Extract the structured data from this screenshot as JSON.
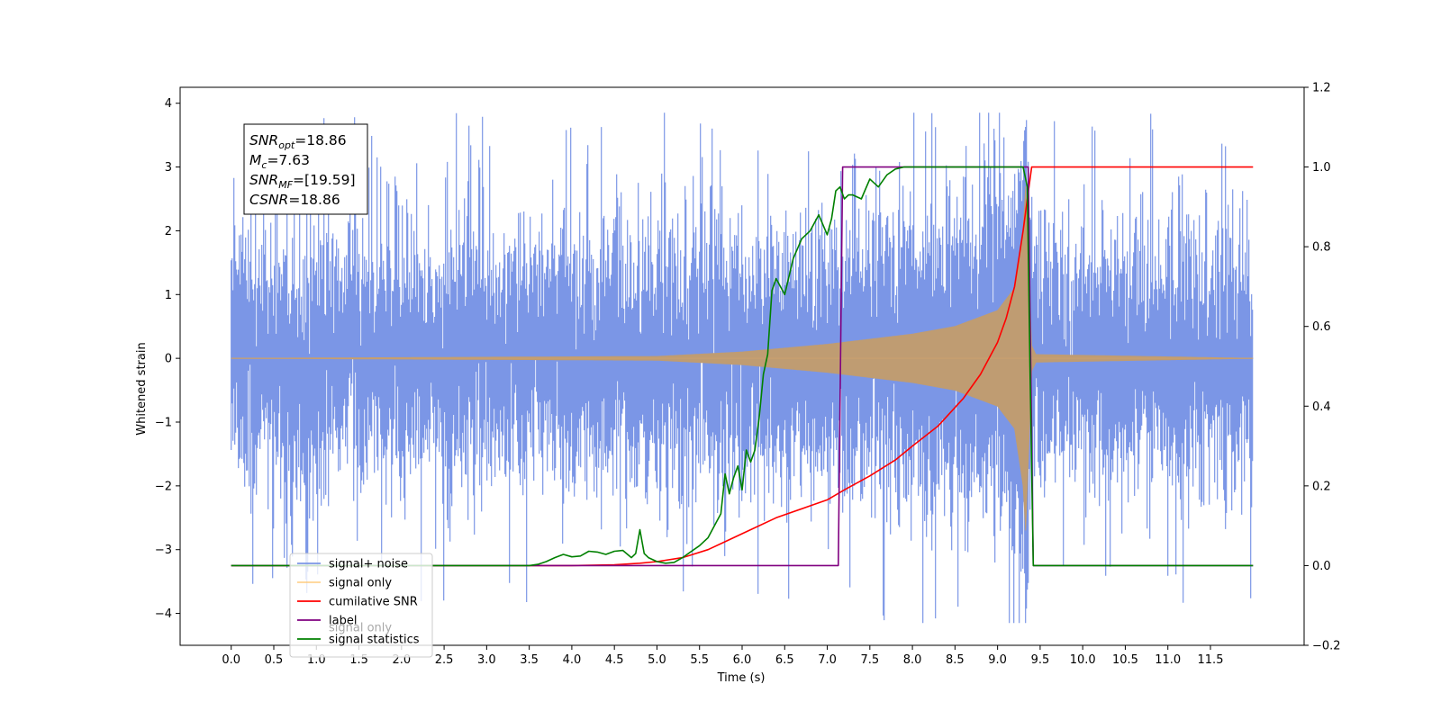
{
  "chart_data": {
    "type": "line",
    "title": "",
    "xlabel": "Time (s)",
    "ylabel": "Whitened strain",
    "ylabel_right": "",
    "xlim": [
      -0.6,
      12.6
    ],
    "ylim": [
      -4.5,
      4.25
    ],
    "ylim_right": [
      -0.2,
      1.2
    ],
    "x_ticks": [
      "0.0",
      "0.5",
      "1.0",
      "1.5",
      "2.0",
      "2.5",
      "3.0",
      "3.5",
      "4.0",
      "4.5",
      "5.0",
      "5.5",
      "6.0",
      "6.5",
      "7.0",
      "7.5",
      "8.0",
      "8.5",
      "9.0",
      "9.5",
      "10.0",
      "10.5",
      "11.0",
      "11.5"
    ],
    "y_ticks": [
      "4",
      "3",
      "2",
      "1",
      "0",
      "−1",
      "−2",
      "−3",
      "−4"
    ],
    "y_ticks_right": [
      "1.2",
      "1.0",
      "0.8",
      "0.6",
      "0.4",
      "0.2",
      "0.0",
      "−0.2"
    ],
    "grid": false,
    "legend_placement": "lower-left",
    "annotation": {
      "lines": [
        {
          "sym": "SNR",
          "sub": "opt",
          "val": "=18.86"
        },
        {
          "sym": "M",
          "sub": "c",
          "val": "=7.63"
        },
        {
          "sym": "SNR",
          "sub": "MF",
          "val": "=[19.59]"
        },
        {
          "sym": "CSNR",
          "sub": "",
          "val": "=18.86"
        }
      ]
    },
    "series": [
      {
        "name": "signal+ noise",
        "axis": "left",
        "color": "#7b96e6",
        "kind": "noise",
        "x_range": [
          0.0,
          12.0
        ],
        "amplitude_typical": 1.0,
        "amplitude_peak": 3.85
      },
      {
        "name": "signal only",
        "axis": "left",
        "color": "#ffc266",
        "kind": "chirp",
        "x_range": [
          0.0,
          12.0
        ],
        "merger_time": 9.33,
        "envelope": [
          [
            0.0,
            0.0
          ],
          [
            5.0,
            0.03
          ],
          [
            6.0,
            0.1
          ],
          [
            7.0,
            0.22
          ],
          [
            8.0,
            0.38
          ],
          [
            8.5,
            0.5
          ],
          [
            9.0,
            0.75
          ],
          [
            9.2,
            1.1
          ],
          [
            9.3,
            2.0
          ],
          [
            9.33,
            2.7
          ],
          [
            9.4,
            0.2
          ],
          [
            9.45,
            0.06
          ],
          [
            12.0,
            0.0
          ]
        ]
      },
      {
        "name": "cumilative SNR",
        "axis": "right",
        "color": "#ff0000",
        "x": [
          0.0,
          4.0,
          4.5,
          4.8,
          5.0,
          5.3,
          5.6,
          5.8,
          6.0,
          6.4,
          6.8,
          7.0,
          7.2,
          7.5,
          7.8,
          8.0,
          8.3,
          8.6,
          8.8,
          9.0,
          9.1,
          9.2,
          9.3,
          9.35,
          9.4,
          9.45,
          12.0
        ],
        "values": [
          0.0,
          0.0,
          0.002,
          0.006,
          0.01,
          0.02,
          0.04,
          0.06,
          0.08,
          0.12,
          0.15,
          0.165,
          0.19,
          0.225,
          0.265,
          0.3,
          0.35,
          0.42,
          0.48,
          0.56,
          0.62,
          0.7,
          0.84,
          0.92,
          1.0,
          1.0,
          1.0
        ]
      },
      {
        "name": "label",
        "axis": "right",
        "color": "#800080",
        "x": [
          0.0,
          7.13,
          7.18,
          9.36,
          9.42,
          12.0
        ],
        "values": [
          0.0,
          0.0,
          1.0,
          1.0,
          0.0,
          0.0
        ]
      },
      {
        "name": "signal only",
        "axis": "right",
        "color": "#9a9a9a",
        "hidden_behind_legend": true,
        "x": [],
        "values": []
      },
      {
        "name": "signal statistics",
        "axis": "right",
        "color": "#008000",
        "x": [
          0.0,
          3.5,
          3.6,
          3.7,
          3.8,
          3.9,
          4.0,
          4.1,
          4.2,
          4.3,
          4.4,
          4.5,
          4.6,
          4.7,
          4.75,
          4.8,
          4.85,
          4.9,
          5.0,
          5.1,
          5.2,
          5.3,
          5.4,
          5.5,
          5.6,
          5.7,
          5.75,
          5.8,
          5.85,
          5.9,
          5.95,
          6.0,
          6.05,
          6.1,
          6.15,
          6.2,
          6.25,
          6.3,
          6.35,
          6.4,
          6.45,
          6.5,
          6.6,
          6.7,
          6.8,
          6.9,
          7.0,
          7.05,
          7.1,
          7.15,
          7.2,
          7.25,
          7.3,
          7.4,
          7.5,
          7.6,
          7.7,
          7.8,
          7.9,
          8.0,
          9.3,
          9.35,
          9.38,
          9.42,
          12.0
        ],
        "values": [
          0.0,
          0.0,
          0.003,
          0.01,
          0.02,
          0.028,
          0.022,
          0.024,
          0.036,
          0.034,
          0.028,
          0.036,
          0.038,
          0.02,
          0.03,
          0.09,
          0.03,
          0.02,
          0.01,
          0.006,
          0.008,
          0.02,
          0.035,
          0.05,
          0.07,
          0.11,
          0.13,
          0.23,
          0.18,
          0.22,
          0.25,
          0.19,
          0.29,
          0.26,
          0.29,
          0.37,
          0.48,
          0.53,
          0.69,
          0.72,
          0.7,
          0.68,
          0.77,
          0.82,
          0.84,
          0.88,
          0.83,
          0.87,
          0.94,
          0.95,
          0.92,
          0.93,
          0.93,
          0.92,
          0.97,
          0.95,
          0.98,
          0.995,
          1.0,
          1.0,
          1.0,
          0.95,
          0.5,
          0.0,
          0.0
        ]
      }
    ]
  }
}
